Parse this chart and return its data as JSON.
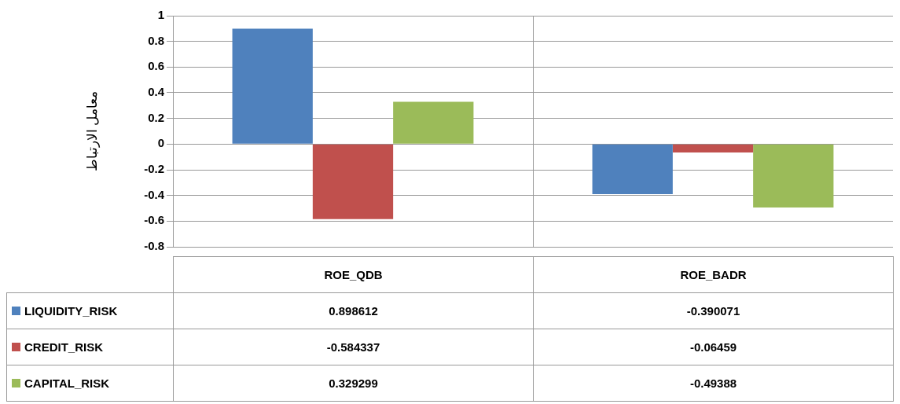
{
  "chart_data": {
    "type": "bar",
    "ylabel": "معامل الارتباط",
    "categories": [
      "ROE_QDB",
      "ROE_BADR"
    ],
    "series": [
      {
        "name": "LIQUIDITY_RISK",
        "color": "#4f81bd",
        "values": [
          0.898612,
          -0.390071
        ]
      },
      {
        "name": "CREDIT_RISK",
        "color": "#c0504d",
        "values": [
          -0.584337,
          -0.06459
        ]
      },
      {
        "name": "CAPITAL_RISK",
        "color": "#9bbb59",
        "values": [
          0.329299,
          -0.49388
        ]
      }
    ],
    "ylim": [
      -0.8,
      1
    ],
    "yticks": [
      -0.8,
      -0.6,
      -0.4,
      -0.2,
      0,
      0.2,
      0.4,
      0.6,
      0.8,
      1
    ],
    "grid": "y",
    "data_labels": true,
    "legend": "bottom"
  }
}
